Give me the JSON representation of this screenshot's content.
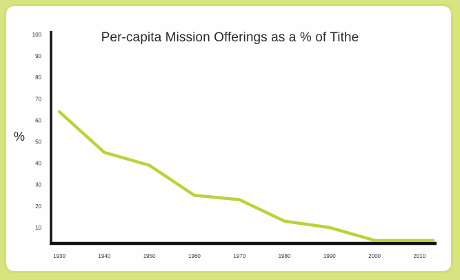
{
  "chart_data": {
    "type": "line",
    "title": "Per-capita Mission Offerings as a % of Tithe",
    "xlabel": "",
    "ylabel": "%",
    "x": [
      1930,
      1940,
      1950,
      1960,
      1970,
      1980,
      1990,
      2000,
      2010
    ],
    "x_tick_labels": [
      "1930",
      "1940",
      "1950",
      "1960",
      "1970",
      "1980",
      "1990",
      "2000",
      "2010"
    ],
    "y_tick_labels": [
      "10",
      "20",
      "30",
      "40",
      "50",
      "60",
      "70",
      "80",
      "90",
      "100"
    ],
    "xlim": [
      1930,
      2013
    ],
    "ylim": [
      0,
      100
    ],
    "grid": false,
    "series": [
      {
        "x": [
          1930,
          1940,
          1950,
          1960,
          1970,
          1980,
          1990,
          2000,
          2013
        ],
        "values": [
          64,
          45,
          39,
          25,
          23,
          13,
          10,
          4,
          4
        ]
      }
    ],
    "line_color": "#bcd23a"
  }
}
